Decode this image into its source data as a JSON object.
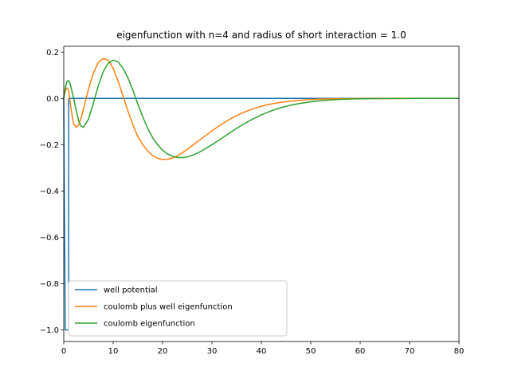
{
  "chart_data": {
    "type": "line",
    "title": "eigenfunction with n=4 and radius of short interaction = 1.0",
    "xlabel": "",
    "ylabel": "",
    "xlim": [
      0,
      80
    ],
    "ylim": [
      -1.05,
      0.225
    ],
    "xticks": [
      0,
      10,
      20,
      30,
      40,
      50,
      60,
      70,
      80
    ],
    "yticks": [
      -1.0,
      -0.8,
      -0.6,
      -0.4,
      -0.2,
      0.0,
      0.2
    ],
    "xtick_labels": [
      "0",
      "10",
      "20",
      "30",
      "40",
      "50",
      "60",
      "70",
      "80"
    ],
    "ytick_labels": [
      "−1.0",
      "−0.8",
      "−0.6",
      "−0.4",
      "−0.2",
      "0.0",
      "0.2"
    ],
    "grid": false,
    "legend_position": "lower-left",
    "series": [
      {
        "name": " well potential",
        "color": "#1f77b4",
        "x": [
          0.0,
          0.3,
          0.5,
          0.7,
          0.9,
          1.0,
          1.001,
          80
        ],
        "y": [
          0.0,
          -1.0,
          -1.0,
          -1.0,
          -1.0,
          -1.0,
          0.0,
          0.0
        ]
      },
      {
        "name": "coulomb plus well eigenfunction",
        "color": "#ff7f0e",
        "x": [
          0.0,
          0.3,
          0.6,
          0.9,
          1.2,
          1.5,
          2.0,
          2.5,
          3.0,
          3.5,
          4.0,
          5.0,
          6.0,
          7.0,
          8.0,
          9.0,
          10.0,
          11.0,
          12.0,
          13.0,
          14.0,
          15.0,
          16.0,
          17.0,
          18.0,
          19.0,
          20.0,
          21.0,
          22.0,
          23.0,
          24.0,
          25.0,
          26.0,
          28.0,
          30.0,
          32.0,
          34.0,
          36.0,
          38.0,
          40.0,
          42.0,
          44.0,
          46.0,
          48.0,
          50.0,
          52.0,
          55.0,
          58.0,
          61.0,
          64.0,
          67.0,
          70.0,
          75.0,
          80.0
        ],
        "y": [
          0.0,
          0.03,
          0.045,
          0.04,
          0.0,
          -0.05,
          -0.11,
          -0.125,
          -0.115,
          -0.085,
          -0.045,
          0.04,
          0.11,
          0.155,
          0.172,
          0.165,
          0.13,
          0.075,
          0.01,
          -0.055,
          -0.115,
          -0.165,
          -0.2,
          -0.228,
          -0.247,
          -0.259,
          -0.264,
          -0.263,
          -0.258,
          -0.248,
          -0.235,
          -0.22,
          -0.204,
          -0.172,
          -0.14,
          -0.111,
          -0.085,
          -0.064,
          -0.047,
          -0.034,
          -0.024,
          -0.017,
          -0.012,
          -0.008,
          -0.005,
          -0.003,
          -0.0015,
          -0.0008,
          -0.0004,
          -0.0002,
          -0.0001,
          0.0,
          0.0,
          0.0
        ]
      },
      {
        "name": "coulomb eigenfunction",
        "color": "#2ca02c",
        "x": [
          0.0,
          0.3,
          0.6,
          0.9,
          1.2,
          1.5,
          2.0,
          2.5,
          3.0,
          3.5,
          4.0,
          5.0,
          6.0,
          7.0,
          8.0,
          9.0,
          10.0,
          11.0,
          12.0,
          13.0,
          14.0,
          15.0,
          16.0,
          17.0,
          18.0,
          19.0,
          20.0,
          21.0,
          22.0,
          23.0,
          24.0,
          25.0,
          26.0,
          27.0,
          28.0,
          30.0,
          32.0,
          34.0,
          36.0,
          38.0,
          40.0,
          42.0,
          44.0,
          46.0,
          48.0,
          50.0,
          53.0,
          56.0,
          59.0,
          62.0,
          65.0,
          68.0,
          72.0,
          76.0,
          80.0
        ],
        "y": [
          0.0,
          0.045,
          0.07,
          0.078,
          0.07,
          0.045,
          0.0,
          -0.05,
          -0.095,
          -0.12,
          -0.125,
          -0.09,
          -0.02,
          0.055,
          0.115,
          0.152,
          0.165,
          0.158,
          0.13,
          0.088,
          0.035,
          -0.025,
          -0.08,
          -0.13,
          -0.17,
          -0.2,
          -0.224,
          -0.24,
          -0.25,
          -0.255,
          -0.256,
          -0.253,
          -0.246,
          -0.237,
          -0.226,
          -0.2,
          -0.172,
          -0.143,
          -0.116,
          -0.092,
          -0.071,
          -0.054,
          -0.04,
          -0.029,
          -0.021,
          -0.015,
          -0.008,
          -0.004,
          -0.002,
          -0.001,
          -0.0005,
          -0.0002,
          0.0,
          0.0,
          0.0
        ]
      }
    ]
  }
}
